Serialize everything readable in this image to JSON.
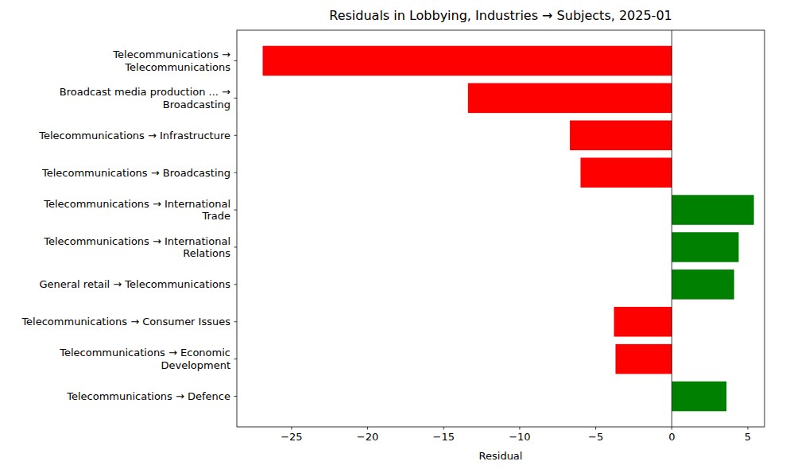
{
  "chart_data": {
    "type": "bar",
    "orientation": "horizontal",
    "title": "Residuals in Lobbying, Industries → Subjects, 2025-01",
    "x_label": "Residual",
    "categories": [
      "Telecommunications →\nTelecommunications",
      "Broadcast media production ... →\nBroadcasting",
      "Telecommunications → Infrastructure",
      "Telecommunications → Broadcasting",
      "Telecommunications → International\nTrade",
      "Telecommunications → International\nRelations",
      "General retail → Telecommunications",
      "Telecommunications → Consumer Issues",
      "Telecommunications → Economic\nDevelopment",
      "Telecommunications → Defence"
    ],
    "values": [
      -26.9,
      -13.4,
      -6.7,
      -6.0,
      5.4,
      4.4,
      4.1,
      -3.8,
      -3.7,
      3.6
    ],
    "colors": [
      "#ff0000",
      "#ff0000",
      "#ff0000",
      "#ff0000",
      "#008000",
      "#008000",
      "#008000",
      "#ff0000",
      "#ff0000",
      "#008000"
    ],
    "xlim": [
      -28.6,
      6.1
    ],
    "xticks": [
      {
        "value": -25,
        "label": "−25"
      },
      {
        "value": -20,
        "label": "−20"
      },
      {
        "value": -15,
        "label": "−15"
      },
      {
        "value": -10,
        "label": "−10"
      },
      {
        "value": -5,
        "label": "−5"
      },
      0,
      5
    ],
    "grid": false
  }
}
